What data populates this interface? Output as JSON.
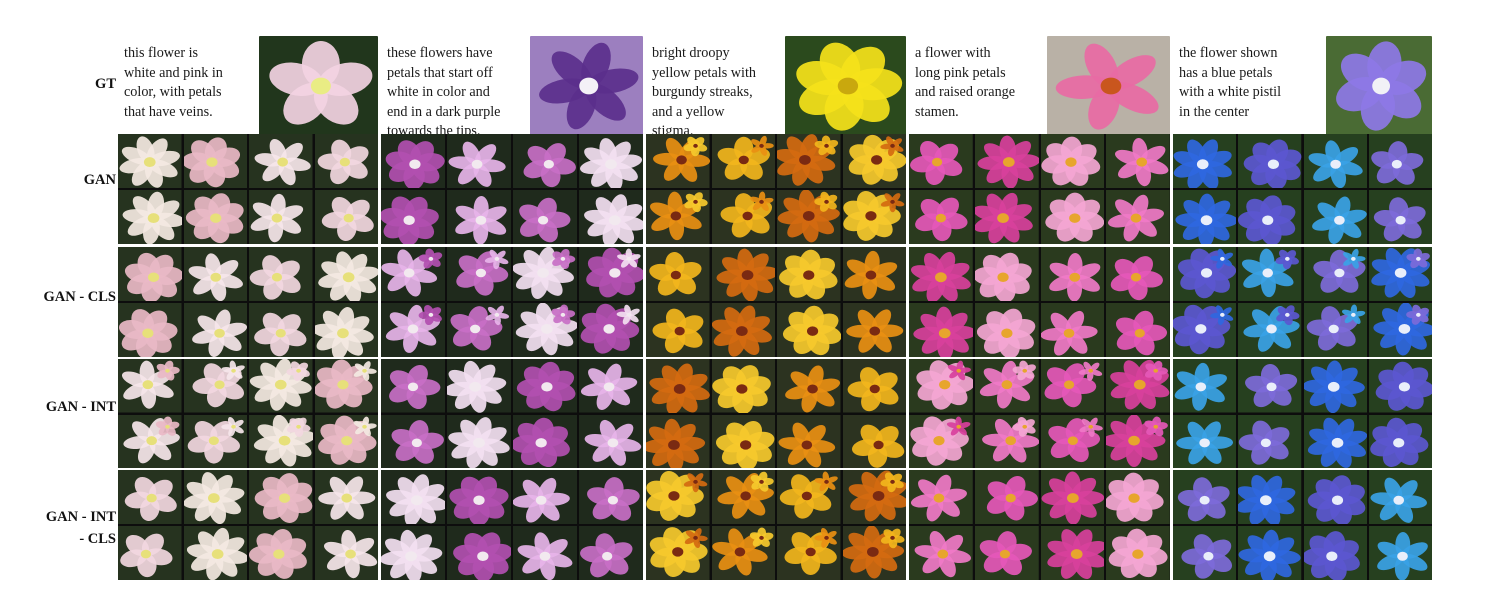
{
  "figure": {
    "row_labels": [
      "GT",
      "GAN",
      "GAN - CLS",
      "GAN - INT",
      "GAN - INT\n- CLS"
    ],
    "columns": [
      {
        "caption": "this flower is\nwhite and pink in\ncolor, with petals\nthat have veins.",
        "bg": "#26331f",
        "petal_colors": [
          "#f2d7e0",
          "#f6e6ea",
          "#e9b8c6",
          "#f4e9e2"
        ],
        "center_color": "#e7e07a",
        "gt": {
          "bg": "#21361c",
          "petal": "#f3d3e2",
          "center": "#e9ec84"
        }
      },
      {
        "caption": "these flowers have\npetals that start off\nwhite in color and\nend in a dark purple\ntowards the tips.",
        "bg": "#1f2a1c",
        "petal_colors": [
          "#c86fc6",
          "#e7b4e9",
          "#b24fb0",
          "#f3dff1"
        ],
        "center_color": "#f2e9ef",
        "gt": {
          "bg": "#9c7fbf",
          "petal": "#5b2f8c",
          "center": "#f4f1f7"
        }
      },
      {
        "caption": "bright droopy\nyellow petals with\nburgundy streaks,\nand a yellow\nstigma.",
        "bg": "#2c3320",
        "petal_colors": [
          "#f2b51c",
          "#e98f12",
          "#f6c92d",
          "#d46a10"
        ],
        "center_color": "#7a2a12",
        "gt": {
          "bg": "#2b4a1d",
          "petal": "#f5e21a",
          "center": "#c9a80e"
        }
      },
      {
        "caption": "a flower with\nlong pink petals\nand raised orange\nstamen.",
        "bg": "#2a3a1e",
        "petal_colors": [
          "#e558b8",
          "#f07ac7",
          "#f4a6d3",
          "#d8409c"
        ],
        "center_color": "#e7a52d",
        "gt": {
          "bg": "#b9b1a6",
          "petal": "#e86aa4",
          "center": "#c9561e"
        }
      },
      {
        "caption": "the flower shown\nhas a blue petals\nwith a white pistil\nin the center",
        "bg": "#26401f",
        "petal_colors": [
          "#7d6ad9",
          "#3aa2e6",
          "#5b57d0",
          "#2f67e0"
        ],
        "center_color": "#e9eefa",
        "gt": {
          "bg": "#4a6b34",
          "petal": "#8d78e6",
          "center": "#f1f1f6"
        }
      }
    ]
  }
}
